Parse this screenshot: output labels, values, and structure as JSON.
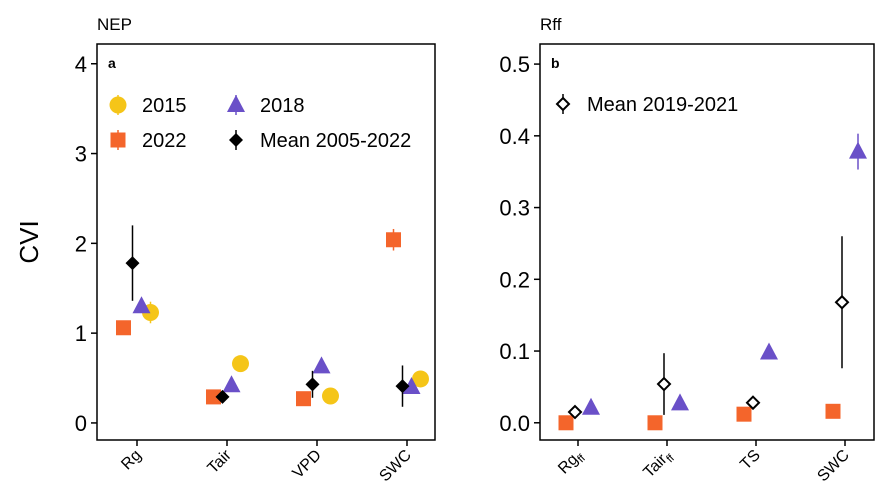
{
  "chart_data": [
    {
      "type": "point",
      "title": "NEP",
      "panel_label": "a",
      "ylabel": "CVI",
      "categories": [
        "Rg",
        "Tair",
        "VPD",
        "SWC"
      ],
      "ylim": [
        -0.19,
        4.22
      ],
      "yticks": [
        0,
        1,
        2,
        3,
        4
      ],
      "series": [
        {
          "name": "2015",
          "color": "#f5c518",
          "marker": "circle",
          "filled": true,
          "values": [
            1.23,
            0.66,
            0.3,
            0.49
          ],
          "errors": [
            0.12,
            null,
            null,
            null
          ]
        },
        {
          "name": "2018",
          "color": "#6a50c8",
          "marker": "triangle",
          "filled": true,
          "values": [
            1.3,
            0.42,
            0.63,
            0.4
          ],
          "errors": [
            null,
            null,
            null,
            null
          ]
        },
        {
          "name": "2022",
          "color": "#f4652b",
          "marker": "square",
          "filled": true,
          "values": [
            1.06,
            0.29,
            0.27,
            2.04
          ],
          "errors": [
            null,
            null,
            null,
            0.12
          ]
        },
        {
          "name": "Mean 2005-2022",
          "color": "#000000",
          "marker": "diamond",
          "filled": true,
          "values": [
            1.78,
            0.29,
            0.43,
            0.41
          ],
          "errors": [
            0.42,
            null,
            0.15,
            0.23
          ]
        }
      ]
    },
    {
      "type": "point",
      "title": "Rff",
      "panel_label": "b",
      "categories": [
        {
          "text": "Rg",
          "subscript": "ff"
        },
        {
          "text": "Tair",
          "subscript": "ff"
        },
        {
          "text": "TS"
        },
        {
          "text": "SWC"
        }
      ],
      "ylim": [
        -0.024,
        0.528
      ],
      "yticks": [
        {
          "value": 0,
          "label": "0.0"
        },
        0.1,
        0.2,
        0.3,
        0.4,
        0.5
      ],
      "series": [
        {
          "color": "#f4652b",
          "marker": "square",
          "filled": true,
          "values": [
            0,
            0,
            0.012,
            0.016
          ],
          "errors": [
            null,
            null,
            null,
            null
          ]
        },
        {
          "color": "#6a50c8",
          "marker": "triangle",
          "filled": true,
          "values": [
            0.021,
            0.027,
            0.098,
            0.378
          ],
          "errors": [
            null,
            null,
            null,
            0.025
          ]
        },
        {
          "name": "Mean 2019-2021",
          "color": "#000000",
          "marker": "diamond",
          "filled": false,
          "values": [
            0.015,
            0.054,
            0.028,
            0.168
          ],
          "errors": [
            0.006,
            0.043,
            0.008,
            0.092
          ]
        }
      ]
    }
  ]
}
